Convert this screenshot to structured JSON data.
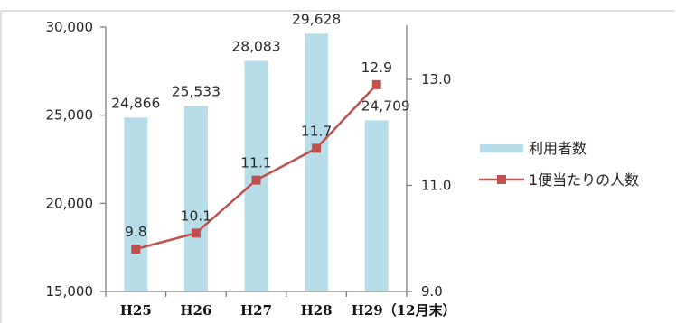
{
  "chart_data": {
    "type": "bar",
    "categories": [
      "H25",
      "H26",
      "H27",
      "H28",
      "H29（12月末）"
    ],
    "series": [
      {
        "name": "利用者数",
        "type": "bar",
        "axis": "left",
        "values": [
          24866,
          25533,
          28083,
          29628,
          24709
        ],
        "labels": [
          "24,866",
          "25,533",
          "28,083",
          "29,628",
          "24,709"
        ],
        "color": "#b7dde8"
      },
      {
        "name": "1便当たりの人数",
        "type": "line",
        "axis": "right",
        "values": [
          9.8,
          10.1,
          11.1,
          11.7,
          12.9
        ],
        "labels": [
          "9.8",
          "10.1",
          "11.1",
          "11.7",
          "12.9"
        ],
        "color": "#c0504d"
      }
    ],
    "y_left": {
      "min": 15000,
      "max": 30000,
      "ticks": [
        15000,
        20000,
        25000,
        30000
      ],
      "tick_labels": [
        "15,000",
        "20,000",
        "25,000",
        "30,000"
      ]
    },
    "y_right": {
      "min": 9.0,
      "max": 13.0,
      "ticks": [
        9.0,
        11.0,
        13.0
      ],
      "tick_labels": [
        "9.0",
        "11.0",
        "13.0"
      ]
    },
    "grid": false,
    "legend_position": "right"
  }
}
